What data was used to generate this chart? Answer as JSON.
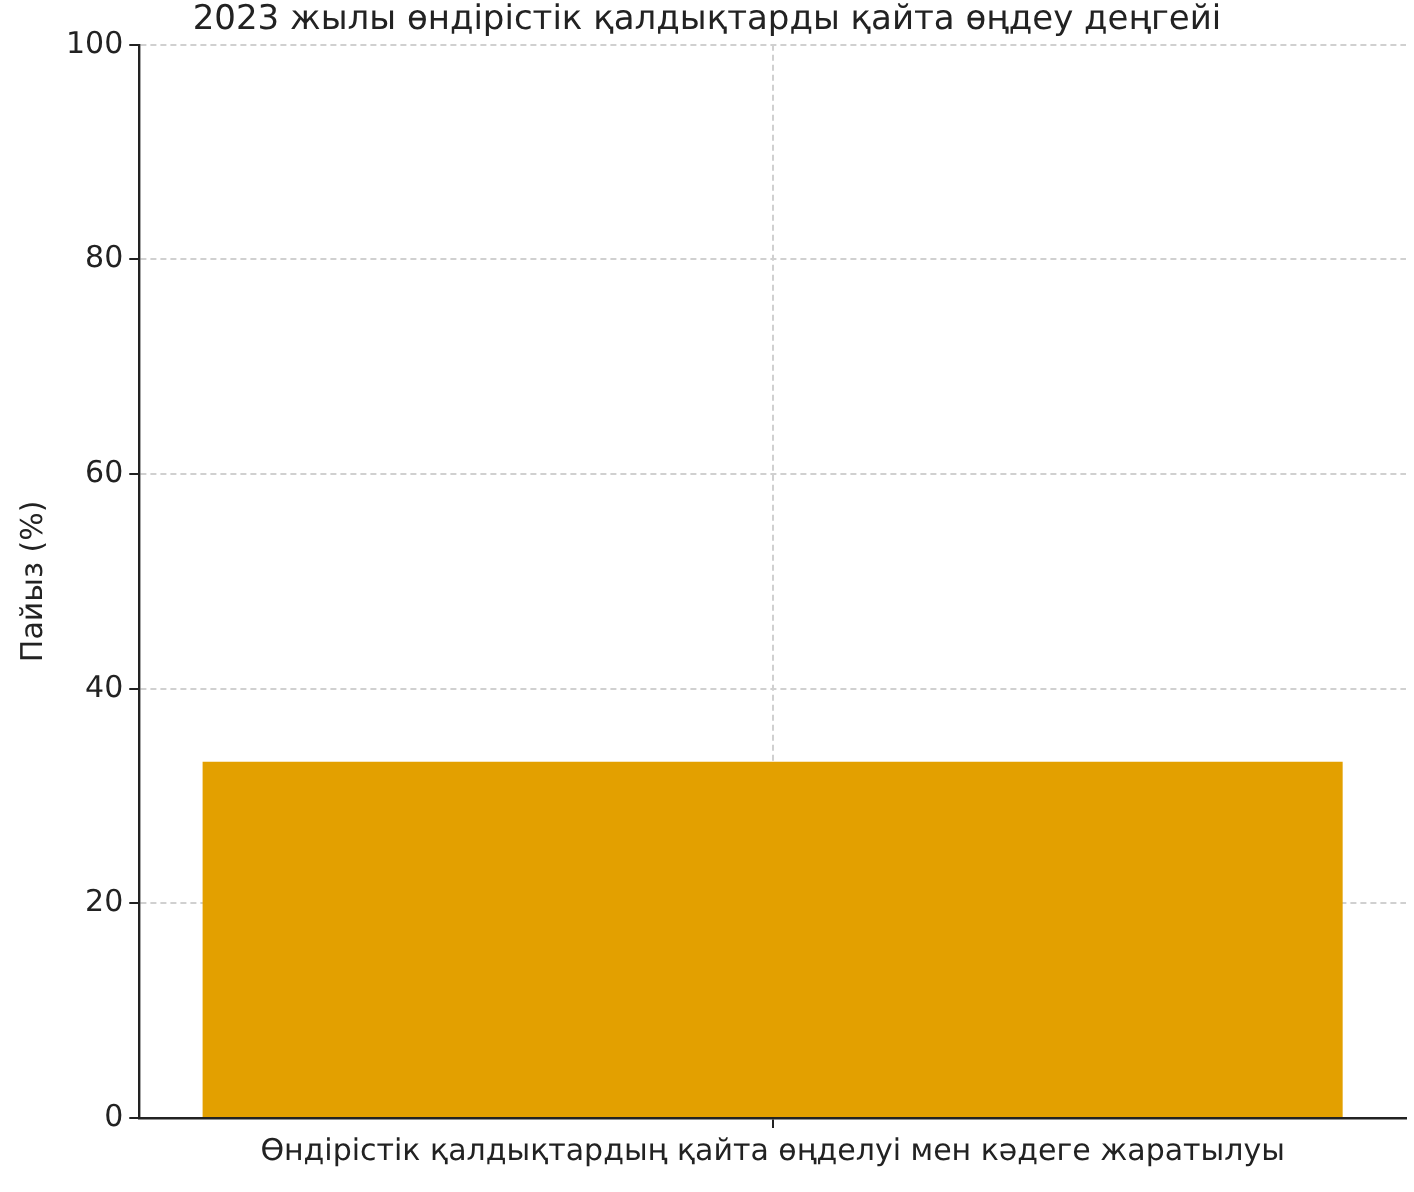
{
  "chart_data": {
    "type": "bar",
    "title": "2023 жылы өндірістік қалдықтарды қайта өңдеу деңгейі",
    "ylabel": "Пайыз (%)",
    "categories": [
      "Өндірістік қалдықтардың қайта өңделуі мен кәдеге жаратылуы"
    ],
    "values": [
      33.2
    ],
    "color": "#e3a000",
    "ylim": [
      0,
      100
    ],
    "yticks": [
      0,
      20,
      40,
      60,
      80,
      100
    ],
    "grid": true
  }
}
